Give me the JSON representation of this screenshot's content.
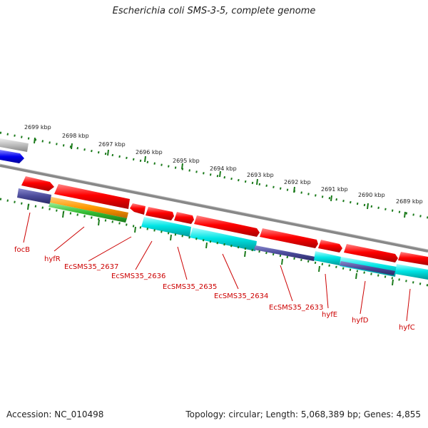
{
  "title": "Escherichia coli SMS-3-5, complete genome",
  "accession": "Accession: NC_010498",
  "summary": "Topology: circular; Length: 5,068,389 bp; Genes: 4,855",
  "ruler_labels": [
    "2699 kbp",
    "2698 kbp",
    "2697 kbp",
    "2696 kbp",
    "2695 kbp",
    "2694 kbp",
    "2693 kbp",
    "2692 kbp",
    "2691 kbp",
    "2690 kbp",
    "2689 kbp"
  ],
  "gene_labels": [
    "focB",
    "hyfR",
    "EcSMS35_2637",
    "EcSMS35_2636",
    "EcSMS35_2635",
    "EcSMS35_2634",
    "EcSMS35_2633",
    "hyfE",
    "hyfD",
    "hyfC"
  ],
  "colors": {
    "cds_red": "#ff0000",
    "dark_purple": "#4a4a9a",
    "orange": "#ff9900",
    "green": "#33bb33",
    "cyan": "#00e5e5",
    "blue": "#0000ee",
    "tick_green": "#1a7a1a",
    "backbone_gray": "#888888"
  }
}
